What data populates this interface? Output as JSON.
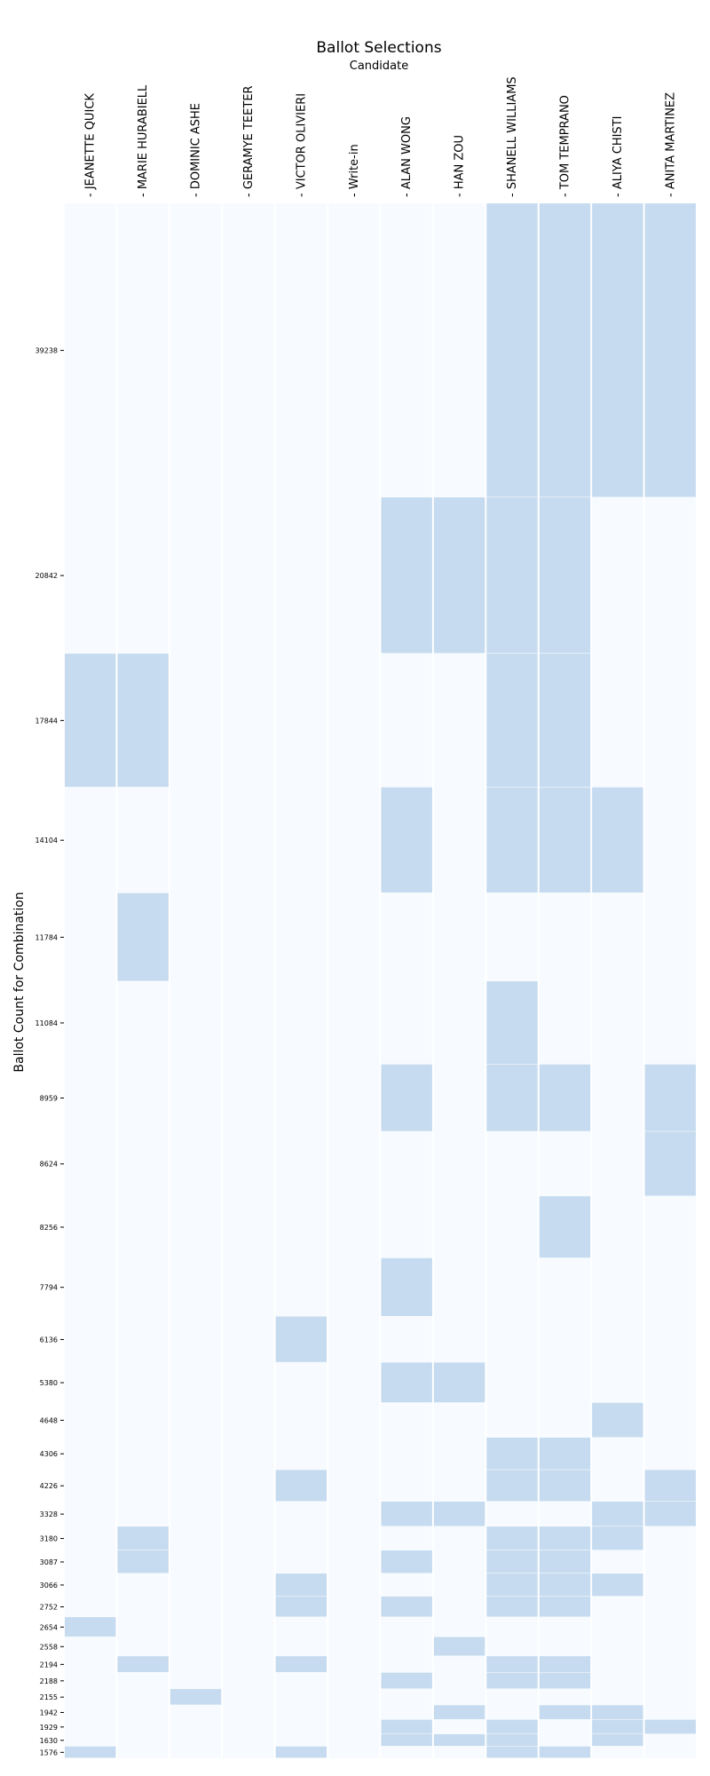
{
  "chart_data": {
    "type": "heatmap",
    "title": "Ballot Selections",
    "subtitle": "Candidate",
    "ylabel": "Ballot Count for Combination",
    "candidates": [
      "JEANETTE QUICK",
      "MARIE HURABIELL",
      "DOMINIC ASHE",
      "GERAMYE TEETER",
      "VICTOR OLIVIERI",
      "Write-in",
      "ALAN WONG",
      "HAN ZOU",
      "SHANELL WILLIAMS",
      "TOM TEMPRANO",
      "ALIYA CHISTI",
      "ANITA MARTINEZ"
    ],
    "colors": {
      "selected": "#c6dbef",
      "unselected": "#f7fbff"
    },
    "combinations": [
      {
        "count": 39238,
        "label": "39238",
        "selected": [
          8,
          9,
          10,
          11
        ]
      },
      {
        "count": 20842,
        "label": "20842",
        "selected": [
          6,
          7,
          8,
          9
        ]
      },
      {
        "count": 17844,
        "label": "17844",
        "selected": [
          0,
          1,
          8,
          9
        ]
      },
      {
        "count": 14104,
        "label": "14104",
        "selected": [
          6,
          8,
          9,
          10
        ]
      },
      {
        "count": 11784,
        "label": "11784",
        "selected": [
          1
        ]
      },
      {
        "count": 11084,
        "label": "11084",
        "selected": [
          8
        ]
      },
      {
        "count": 8959,
        "label": "8959",
        "selected": [
          6,
          8,
          9,
          11
        ]
      },
      {
        "count": 8624,
        "label": "8624",
        "selected": [
          11
        ]
      },
      {
        "count": 8256,
        "label": "8256",
        "selected": [
          9
        ]
      },
      {
        "count": 7794,
        "label": "7794",
        "selected": [
          6
        ]
      },
      {
        "count": 6136,
        "label": "6136",
        "selected": [
          4
        ]
      },
      {
        "count": 5380,
        "label": "5380",
        "selected": [
          6,
          7
        ]
      },
      {
        "count": 4648,
        "label": "4648",
        "selected": [
          10
        ]
      },
      {
        "count": 4306,
        "label": "4306",
        "selected": [
          8,
          9
        ]
      },
      {
        "count": 4226,
        "label": "4226",
        "selected": [
          4,
          8,
          9,
          11
        ]
      },
      {
        "count": 3328,
        "label": "3328",
        "selected": [
          6,
          7,
          10,
          11
        ]
      },
      {
        "count": 3180,
        "label": "3180",
        "selected": [
          1,
          8,
          9,
          10
        ]
      },
      {
        "count": 3087,
        "label": "3087",
        "selected": [
          1,
          6,
          8,
          9
        ]
      },
      {
        "count": 3066,
        "label": "3066",
        "selected": [
          4,
          8,
          9,
          10
        ]
      },
      {
        "count": 2752,
        "label": "2752",
        "selected": [
          4,
          6,
          8,
          9
        ]
      },
      {
        "count": 2654,
        "label": "2654",
        "selected": [
          0
        ]
      },
      {
        "count": 2558,
        "label": "2558",
        "selected": [
          7
        ]
      },
      {
        "count": 2194,
        "label": "2194",
        "selected": [
          1,
          4,
          8,
          9
        ]
      },
      {
        "count": 2188,
        "label": "2188",
        "selected": [
          6,
          8,
          9
        ]
      },
      {
        "count": 2155,
        "label": "2155",
        "selected": [
          2
        ]
      },
      {
        "count": 1942,
        "label": "1942",
        "selected": [
          7,
          9,
          10
        ]
      },
      {
        "count": 1929,
        "label": "1929",
        "selected": [
          6,
          8,
          10,
          11
        ]
      },
      {
        "count": 1630,
        "label": "1630",
        "selected": [
          6,
          7,
          8,
          10
        ]
      },
      {
        "count": 1576,
        "label": "1576",
        "selected": [
          0,
          4,
          8,
          9
        ]
      }
    ]
  }
}
